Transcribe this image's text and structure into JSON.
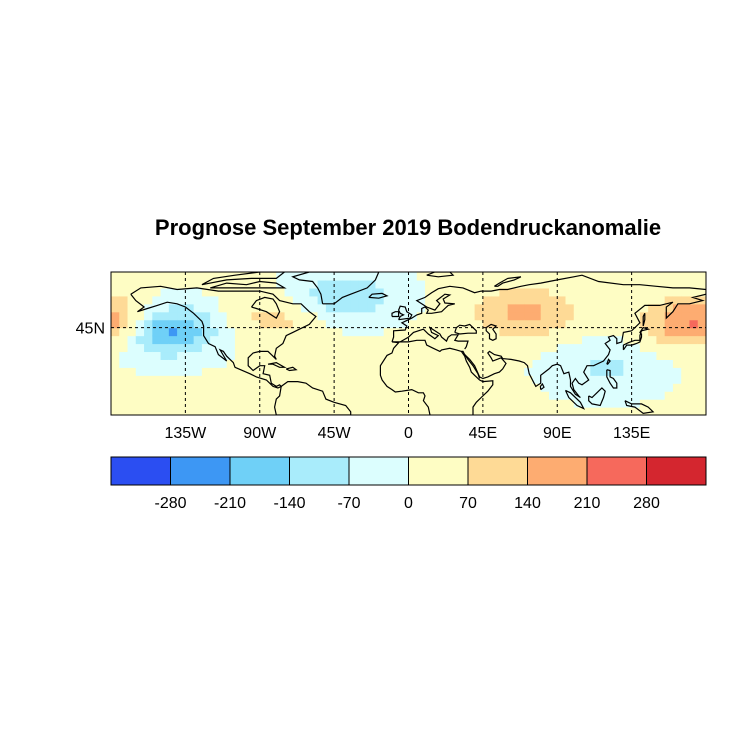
{
  "title": "Prognose September 2019 Bodendruckanomalie",
  "map": {
    "projection": "cylindrical-equidistant",
    "lon_range": [
      -180,
      180
    ],
    "lat_range": [
      -10,
      80
    ],
    "lon_ticks": [
      {
        "lon": -135,
        "label": "135W"
      },
      {
        "lon": -90,
        "label": "90W"
      },
      {
        "lon": -45,
        "label": "45W"
      },
      {
        "lon": 0,
        "label": "0"
      },
      {
        "lon": 45,
        "label": "45E"
      },
      {
        "lon": 90,
        "label": "90E"
      },
      {
        "lon": 135,
        "label": "135E"
      }
    ],
    "lat_ticks": [
      {
        "lat": 45,
        "label": "45N"
      }
    ],
    "gridlines": "dashed",
    "coastlines_color": "#000000"
  },
  "colorbar": {
    "colors": [
      "#2b4ef2",
      "#3d97f4",
      "#6fd0f7",
      "#a9ecfb",
      "#dcfefe",
      "#fefdc4",
      "#feda96",
      "#fdac71",
      "#f6695c",
      "#d4262f"
    ],
    "labels": [
      "-280",
      "-210",
      "-140",
      "-70",
      "0",
      "70",
      "140",
      "210",
      "280"
    ]
  },
  "chart_data": {
    "type": "heatmap",
    "title": "Prognose September 2019 Bodendruckanomalie",
    "bins": [
      -350,
      -280,
      -210,
      -140,
      -70,
      0,
      70,
      140,
      210,
      280,
      350
    ],
    "anomaly_centers": [
      {
        "lon": -150,
        "lat": 44,
        "value": -300
      },
      {
        "lon": -40,
        "lat": 65,
        "value": -150
      },
      {
        "lon": 70,
        "lat": 55,
        "value": 150
      },
      {
        "lon": 175,
        "lat": 48,
        "value": 160
      },
      {
        "lon": -175,
        "lat": 48,
        "value": 130
      },
      {
        "lon": -80,
        "lat": 52,
        "value": 90
      },
      {
        "lon": 120,
        "lat": 20,
        "value": -90
      }
    ]
  }
}
